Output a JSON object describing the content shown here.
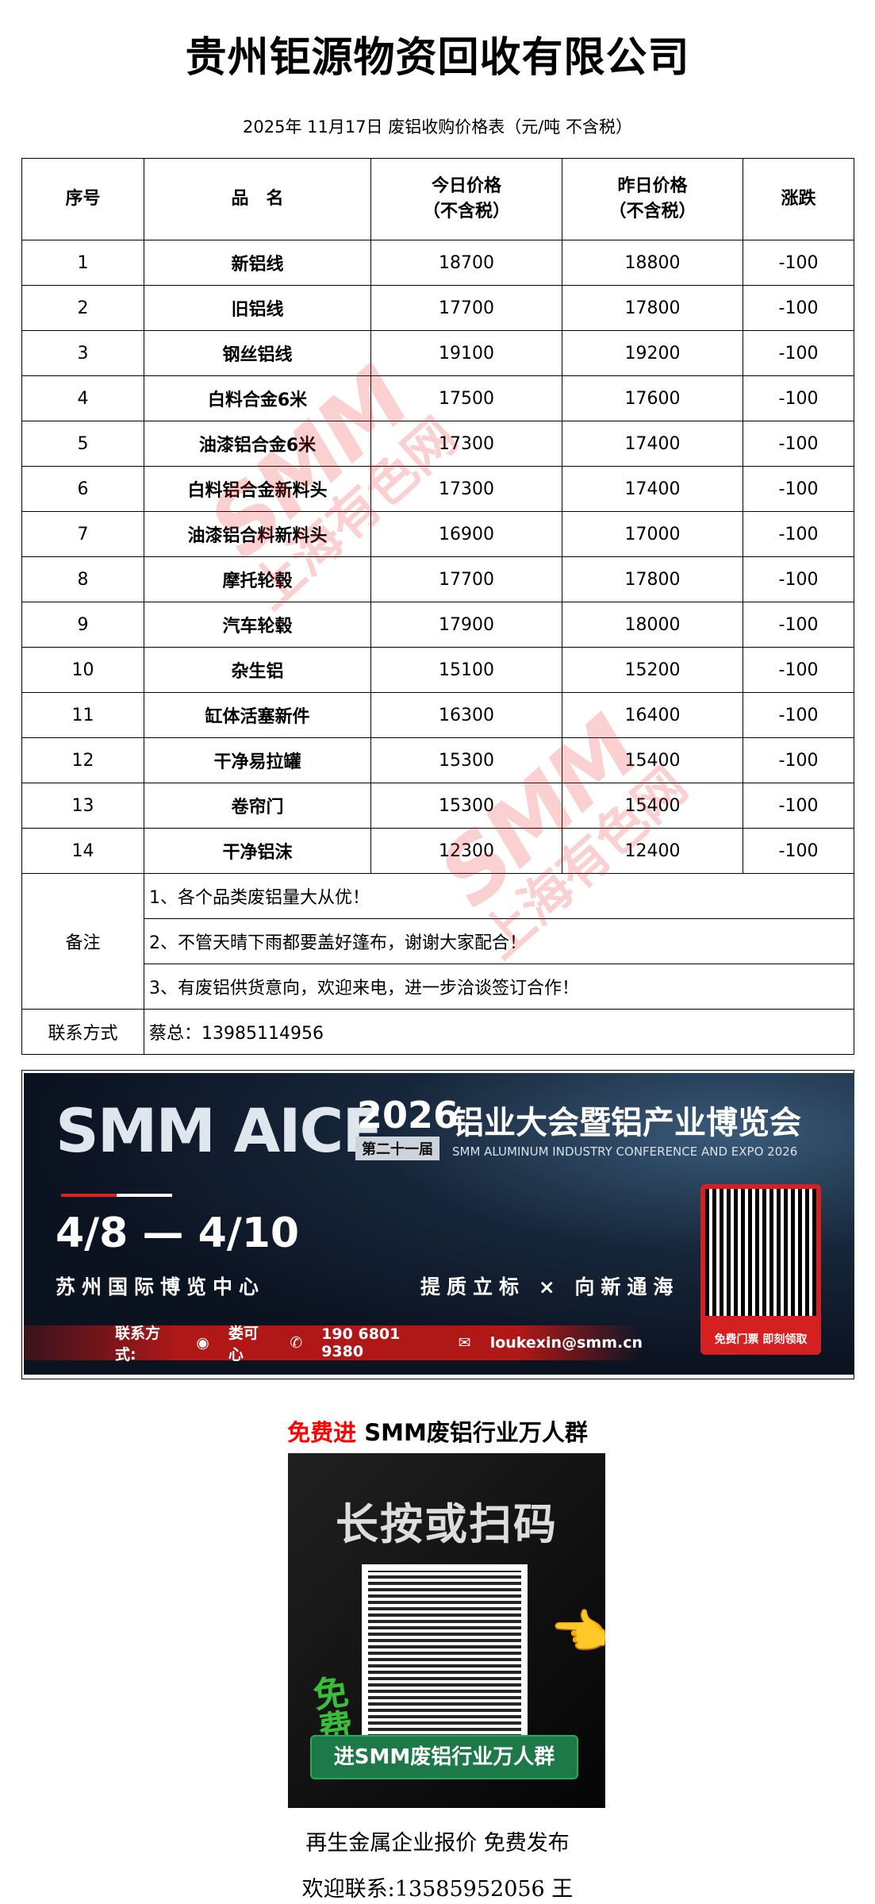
{
  "title": "贵州钜源物资回收有限公司",
  "subtitle": "2025年 11月17日 废铝收购价格表（元/吨  不含税）",
  "table": {
    "headers": [
      "序号",
      "品　名",
      "今日价格\n（不含税）",
      "昨日价格\n（不含税）",
      "涨跌"
    ],
    "header_lines": {
      "today": [
        "今日价格",
        "（不含税）"
      ],
      "yesterday": [
        "昨日价格",
        "（不含税）"
      ]
    },
    "rows": [
      [
        "1",
        "新铝线",
        "18700",
        "18800",
        "-100"
      ],
      [
        "2",
        "旧铝线",
        "17700",
        "17800",
        "-100"
      ],
      [
        "3",
        "钢丝铝线",
        "19100",
        "19200",
        "-100"
      ],
      [
        "4",
        "白料合金6米",
        "17500",
        "17600",
        "-100"
      ],
      [
        "5",
        "油漆铝合金6米",
        "17300",
        "17400",
        "-100"
      ],
      [
        "6",
        "白料铝合金新料头",
        "17300",
        "17400",
        "-100"
      ],
      [
        "7",
        "油漆铝合料新料头",
        "16900",
        "17000",
        "-100"
      ],
      [
        "8",
        "摩托轮毂",
        "17700",
        "17800",
        "-100"
      ],
      [
        "9",
        "汽车轮毂",
        "17900",
        "18000",
        "-100"
      ],
      [
        "10",
        "杂生铝",
        "15100",
        "15200",
        "-100"
      ],
      [
        "11",
        "缸体活塞新件",
        "16300",
        "16400",
        "-100"
      ],
      [
        "12",
        "干净易拉罐",
        "15300",
        "15400",
        "-100"
      ],
      [
        "13",
        "卷帘门",
        "15300",
        "15400",
        "-100"
      ],
      [
        "14",
        "干净铝沫",
        "12300",
        "12400",
        "-100"
      ]
    ],
    "notes_label": "备注",
    "notes": [
      "1、各个品类废铝量大从优！",
      "2、不管天晴下雨都要盖好篷布，谢谢大家配合！",
      "3、有废铝供货意向，欢迎来电，进一步洽谈签订合作！"
    ],
    "contact_label": "联系方式",
    "contact_value": "蔡总：13985114956"
  },
  "watermark": {
    "logo": "SMM",
    "text": "上海有色网",
    "color": "#e62828"
  },
  "banner": {
    "brand": "SMM AICE",
    "year": "2026",
    "edition": "第二十一届",
    "title_cn": "铝业大会暨铝产业博览会",
    "title_en": "SMM ALUMINUM INDUSTRY CONFERENCE AND EXPO 2026",
    "dates": "4/8 — 4/10",
    "venue": "苏州国际博览中心",
    "slogan": "提质立标 × 向新通海",
    "contact_label": "联系方式:",
    "contact_name": "娄可心",
    "phone": "190 6801 9380",
    "email": "loukexin@smm.cn",
    "qr_label": "免费门票 即刻领取"
  },
  "group": {
    "prefix": "免费进",
    "rest": " SMM废铝行业万人群",
    "prefix_color": "#ff0000"
  },
  "poster": {
    "headline": "长按或扫码",
    "free": "免费",
    "button": "进SMM废铝行业万人群"
  },
  "footer": {
    "line1": "再生金属企业报价  免费发布",
    "line2": "欢迎联系:13585952056  王"
  }
}
